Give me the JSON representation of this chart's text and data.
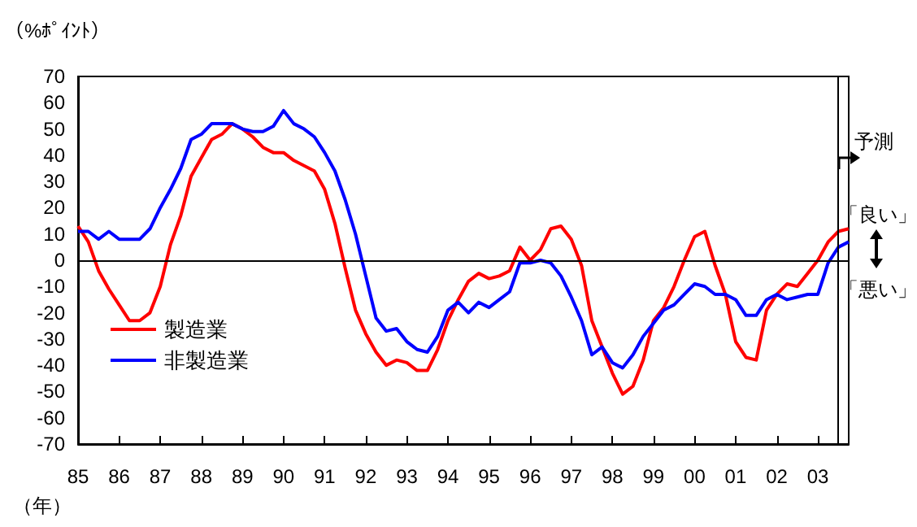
{
  "chart_data": {
    "type": "line",
    "ylabel": "（%ﾎﾟｲﾝﾄ）",
    "xlabel": "（年）",
    "xlim": [
      1985,
      2003.75
    ],
    "ylim": [
      -70,
      70
    ],
    "xticks": [
      {
        "value": 1985,
        "label": "85"
      },
      {
        "value": 1986,
        "label": "86"
      },
      {
        "value": 1987,
        "label": "87"
      },
      {
        "value": 1988,
        "label": "88"
      },
      {
        "value": 1989,
        "label": "89"
      },
      {
        "value": 1990,
        "label": "90"
      },
      {
        "value": 1991,
        "label": "91"
      },
      {
        "value": 1992,
        "label": "92"
      },
      {
        "value": 1993,
        "label": "93"
      },
      {
        "value": 1994,
        "label": "94"
      },
      {
        "value": 1995,
        "label": "95"
      },
      {
        "value": 1996,
        "label": "96"
      },
      {
        "value": 1997,
        "label": "97"
      },
      {
        "value": 1998,
        "label": "98"
      },
      {
        "value": 1999,
        "label": "99"
      },
      {
        "value": 2000,
        "label": "00"
      },
      {
        "value": 2001,
        "label": "01"
      },
      {
        "value": 2002,
        "label": "02"
      },
      {
        "value": 2003,
        "label": "03"
      }
    ],
    "yticks": [
      -70,
      -60,
      -50,
      -40,
      -30,
      -20,
      -10,
      0,
      10,
      20,
      30,
      40,
      50,
      60,
      70
    ],
    "x": [
      1985,
      1985.25,
      1985.5,
      1985.75,
      1986,
      1986.25,
      1986.5,
      1986.75,
      1987,
      1987.25,
      1987.5,
      1987.75,
      1988,
      1988.25,
      1988.5,
      1988.75,
      1989,
      1989.25,
      1989.5,
      1989.75,
      1990,
      1990.25,
      1990.5,
      1990.75,
      1991,
      1991.25,
      1991.5,
      1991.75,
      1992,
      1992.25,
      1992.5,
      1992.75,
      1993,
      1993.25,
      1993.5,
      1993.75,
      1994,
      1994.25,
      1994.5,
      1994.75,
      1995,
      1995.25,
      1995.5,
      1995.75,
      1996,
      1996.25,
      1996.5,
      1996.75,
      1997,
      1997.25,
      1997.5,
      1997.75,
      1998,
      1998.25,
      1998.5,
      1998.75,
      1999,
      1999.25,
      1999.5,
      1999.75,
      2000,
      2000.25,
      2000.5,
      2000.75,
      2001,
      2001.25,
      2001.5,
      2001.75,
      2002,
      2002.25,
      2002.5,
      2002.75,
      2003,
      2003.25,
      2003.5,
      2003.75
    ],
    "series": [
      {
        "name": "製造業",
        "color": "#ff0000",
        "values": [
          13,
          7,
          -4,
          -11,
          -17,
          -23,
          -23,
          -20,
          -10,
          6,
          17,
          32,
          39,
          46,
          48,
          52,
          50,
          47,
          43,
          41,
          41,
          38,
          36,
          34,
          27,
          14,
          -3,
          -19,
          -28,
          -35,
          -40,
          -38,
          -39,
          -42,
          -42,
          -34,
          -23,
          -15,
          -8,
          -5,
          -7,
          -6,
          -4,
          5,
          0,
          4,
          12,
          13,
          8,
          -2,
          -23,
          -33,
          -43,
          -51,
          -48,
          -38,
          -23,
          -18,
          -10,
          0,
          9,
          11,
          -2,
          -13,
          -31,
          -37,
          -38,
          -19,
          -13,
          -9,
          -10,
          -5,
          0,
          7,
          11,
          12
        ]
      },
      {
        "name": "非製造業",
        "color": "#0000ff",
        "values": [
          11,
          11,
          8,
          11,
          8,
          8,
          8,
          12,
          20,
          27,
          35,
          46,
          48,
          52,
          52,
          52,
          50,
          49,
          49,
          51,
          57,
          52,
          50,
          47,
          41,
          34,
          23,
          10,
          -6,
          -22,
          -27,
          -26,
          -31,
          -34,
          -35,
          -29,
          -19,
          -16,
          -20,
          -16,
          -18,
          -15,
          -12,
          -1,
          -1,
          0,
          -1,
          -6,
          -14,
          -23,
          -36,
          -33,
          -39,
          -41,
          -36,
          -29,
          -24,
          -19,
          -17,
          -13,
          -9,
          -10,
          -13,
          -13,
          -15,
          -21,
          -21,
          -15,
          -13,
          -15,
          -14,
          -13,
          -13,
          -1,
          5,
          7
        ]
      }
    ],
    "ref_lines": [
      {
        "axis": "y",
        "value": 0,
        "color": "#000000"
      },
      {
        "axis": "x",
        "value": 2003.5,
        "label": "予測",
        "color": "#000000"
      }
    ],
    "annotations": [
      "「良い」",
      "「悪い」"
    ],
    "legend": "bottom left",
    "grid": false,
    "marker": "none",
    "line_style": "solid"
  }
}
